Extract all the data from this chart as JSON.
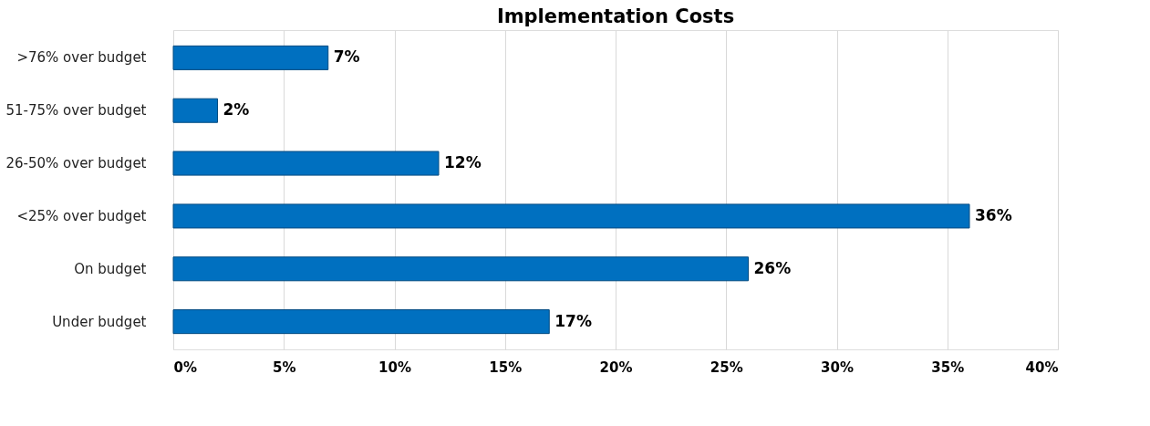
{
  "chart_data": {
    "type": "bar",
    "orientation": "horizontal",
    "title": "Implementation Costs",
    "categories": [
      ">76% over budget",
      "51-75% over budget",
      "26-50% over budget",
      "<25% over budget",
      "On budget",
      "Under budget"
    ],
    "values": [
      7,
      2,
      12,
      36,
      26,
      17
    ],
    "value_labels": [
      "7%",
      "2%",
      "12%",
      "36%",
      "26%",
      "17%"
    ],
    "color": "#0070c0",
    "xlim": [
      0,
      40
    ],
    "xticks": [
      {
        "value": 0,
        "label": "0%"
      },
      {
        "value": 5,
        "label": "5%"
      },
      {
        "value": 10,
        "label": "10%"
      },
      {
        "value": 15,
        "label": "15%"
      },
      {
        "value": 20,
        "label": "20%"
      },
      {
        "value": 25,
        "label": "25%"
      },
      {
        "value": 30,
        "label": "30%"
      },
      {
        "value": 35,
        "label": "35%"
      },
      {
        "value": 40,
        "label": "40%"
      }
    ],
    "grid": "x"
  }
}
